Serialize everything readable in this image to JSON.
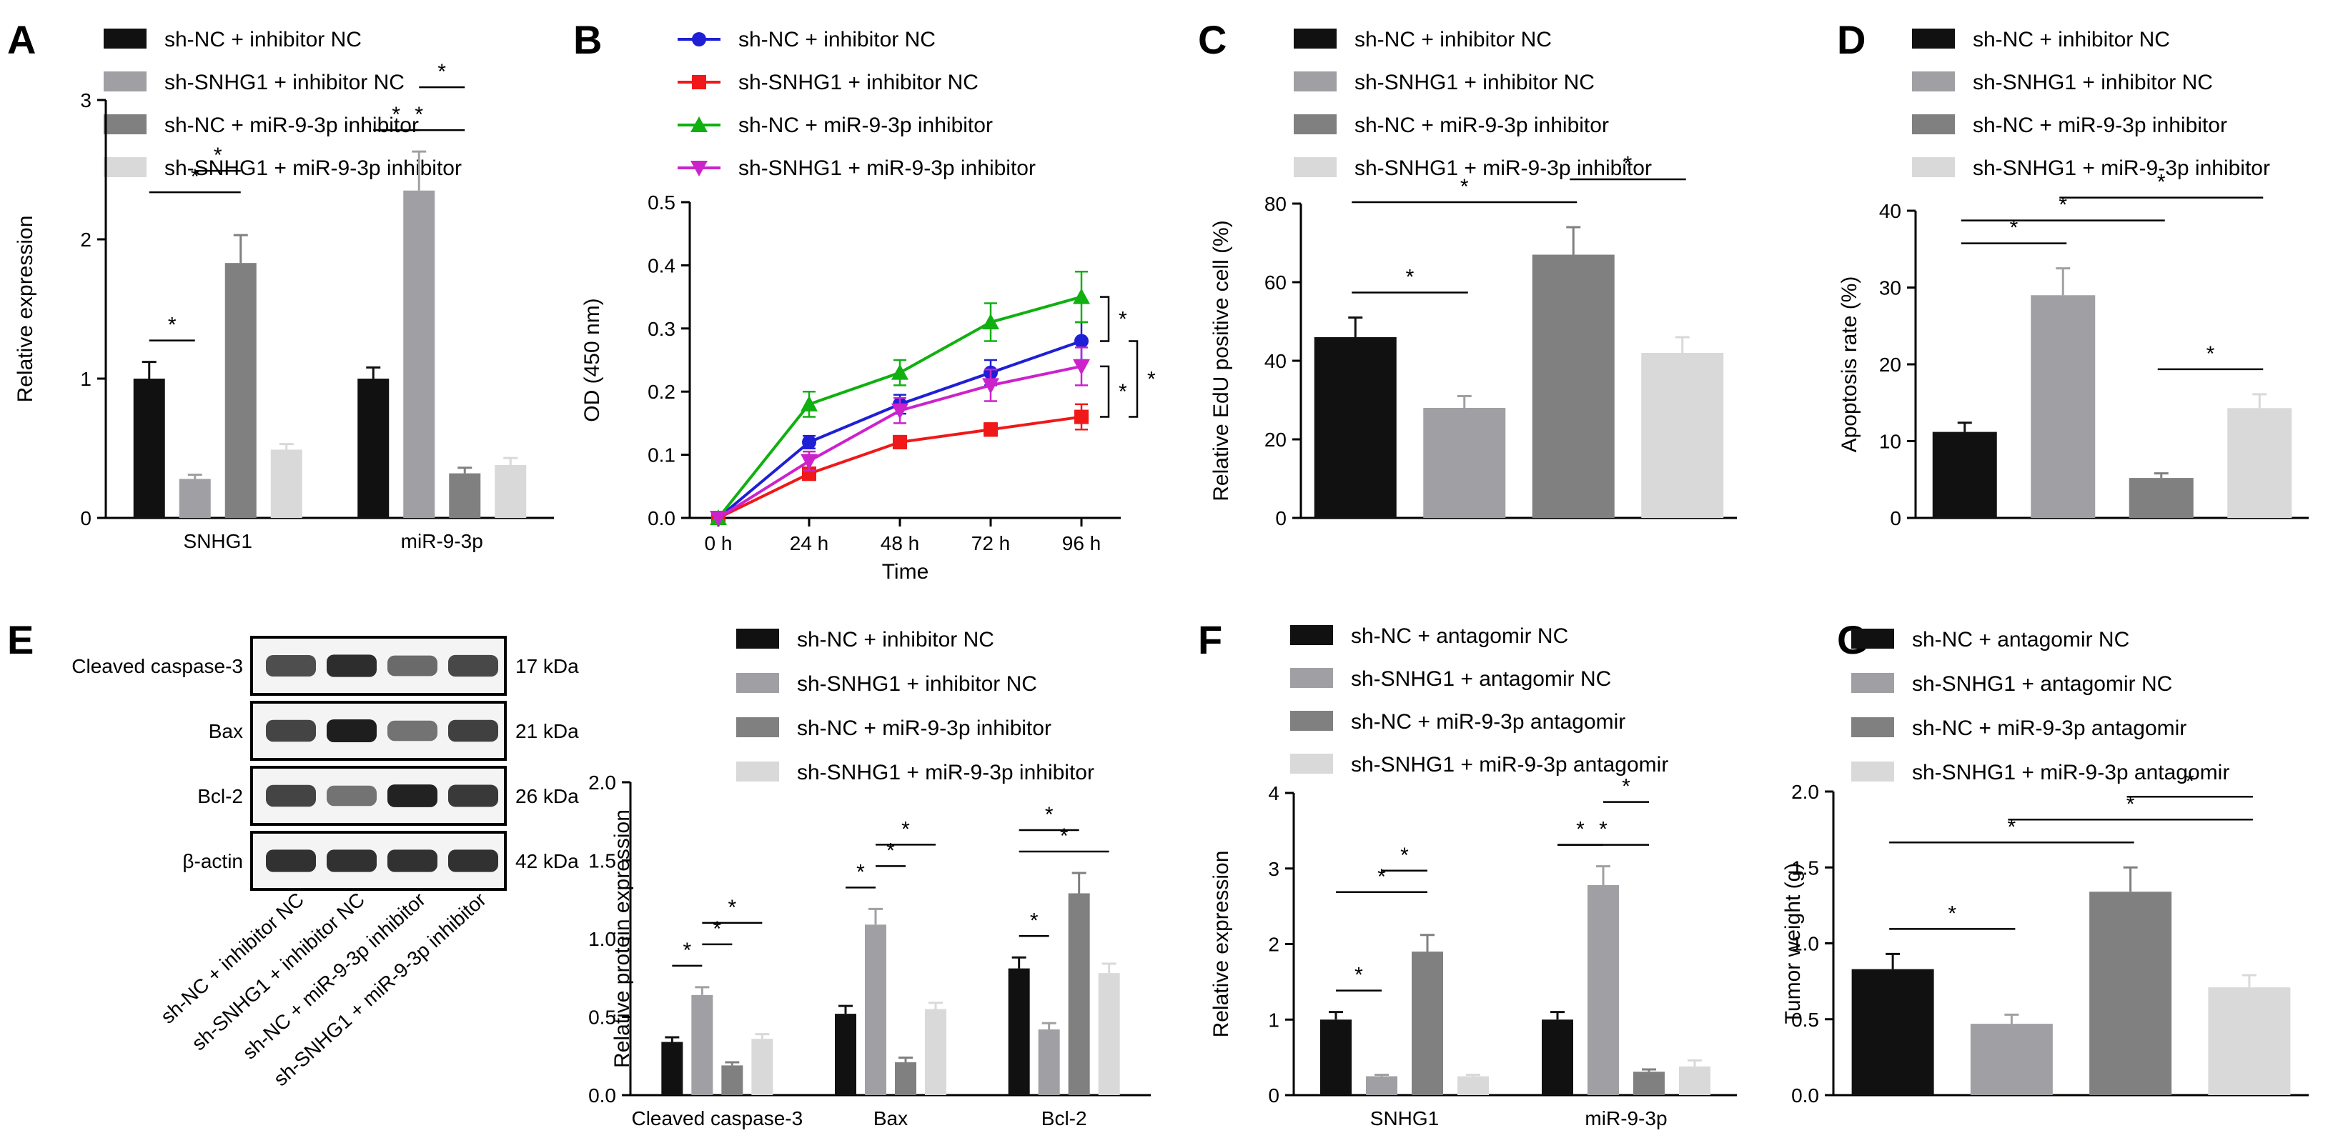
{
  "colors": {
    "g1": "#111111",
    "g2": "#a0a0a4",
    "g3": "#808080",
    "g4": "#d9d9d9",
    "line_g1": "#1f1fd6",
    "line_g2": "#f01818",
    "line_g3": "#10b010",
    "line_g4": "#cc22cc"
  },
  "groups_inhibitor": [
    "sh-NC + inhibitor NC",
    "sh-SNHG1 + inhibitor NC",
    "sh-NC + miR-9-3p inhibitor",
    "sh-SNHG1 + miR-9-3p inhibitor"
  ],
  "groups_antagomir": [
    "sh-NC + antagomir NC",
    "sh-SNHG1 + antagomir NC",
    "sh-NC + miR-9-3p antagomir",
    "sh-SNHG1 + miR-9-3p antagomir"
  ],
  "star": "*",
  "western": {
    "label": "E",
    "bands": [
      {
        "protein": "Cleaved caspase-3",
        "size": "17 kDa",
        "intensity": [
          0.75,
          0.92,
          0.6,
          0.78
        ]
      },
      {
        "protein": "Bax",
        "size": "21 kDa",
        "intensity": [
          0.8,
          1.0,
          0.55,
          0.82
        ]
      },
      {
        "protein": "Bcl-2",
        "size": "26 kDa",
        "intensity": [
          0.8,
          0.55,
          0.98,
          0.86
        ]
      },
      {
        "protein": "β-actin",
        "size": "42 kDa",
        "intensity": [
          0.9,
          0.9,
          0.9,
          0.9
        ]
      }
    ],
    "lane_labels": [
      "sh-NC + inhibitor NC",
      "sh-SNHG1 + inhibitor NC",
      "sh-NC + miR-9-3p inhibitor",
      "sh-SNHG1 + miR-9-3p inhibitor"
    ]
  },
  "chart_data": [
    {
      "id": "A",
      "type": "bar",
      "panel_label": "A",
      "categories": [
        "SNHG1",
        "miR-9-3p"
      ],
      "series": [
        {
          "name": "sh-NC + inhibitor NC",
          "values": [
            1.0,
            1.0
          ],
          "errors": [
            0.12,
            0.08
          ]
        },
        {
          "name": "sh-SNHG1 + inhibitor NC",
          "values": [
            0.28,
            2.35
          ],
          "errors": [
            0.03,
            0.28
          ]
        },
        {
          "name": "sh-NC + miR-9-3p inhibitor",
          "values": [
            1.83,
            0.32
          ],
          "errors": [
            0.2,
            0.04
          ]
        },
        {
          "name": "sh-SNHG1 + miR-9-3p inhibitor",
          "values": [
            0.49,
            0.38
          ],
          "errors": [
            0.04,
            0.05
          ]
        }
      ],
      "xlabel": "",
      "ylabel": "Relative expression",
      "ylim": [
        0,
        3
      ],
      "yticks": [
        "0",
        "1",
        "2",
        "3"
      ],
      "ytick_values": [
        0,
        1,
        2,
        3
      ],
      "significance": [
        [
          0,
          0,
          1
        ],
        [
          0,
          0,
          2
        ],
        [
          0,
          1,
          2
        ],
        [
          1,
          0,
          1
        ],
        [
          1,
          0,
          2
        ],
        [
          1,
          1,
          2
        ]
      ]
    },
    {
      "id": "B",
      "type": "line",
      "panel_label": "B",
      "x": [
        "0 h",
        "24 h",
        "48 h",
        "72 h",
        "96 h"
      ],
      "series": [
        {
          "name": "sh-NC + inhibitor NC",
          "marker": "circle",
          "values": [
            0.0,
            0.12,
            0.18,
            0.23,
            0.28
          ],
          "errors": [
            0,
            0.01,
            0.015,
            0.02,
            0.03
          ]
        },
        {
          "name": "sh-SNHG1 + inhibitor NC",
          "marker": "square",
          "values": [
            0.0,
            0.07,
            0.12,
            0.14,
            0.16
          ],
          "errors": [
            0,
            0.01,
            0.01,
            0.01,
            0.02
          ]
        },
        {
          "name": "sh-NC + miR-9-3p inhibitor",
          "marker": "triangle",
          "values": [
            0.0,
            0.18,
            0.23,
            0.31,
            0.35
          ],
          "errors": [
            0,
            0.02,
            0.02,
            0.03,
            0.04
          ]
        },
        {
          "name": "sh-SNHG1 + miR-9-3p inhibitor",
          "marker": "triangle-down",
          "values": [
            0.0,
            0.09,
            0.17,
            0.21,
            0.24
          ],
          "errors": [
            0,
            0.015,
            0.02,
            0.025,
            0.03
          ]
        }
      ],
      "xlabel": "Time",
      "ylabel": "OD (450 nm)",
      "ylim": [
        0,
        0.5
      ],
      "yticks": [
        "0.0",
        "0.1",
        "0.2",
        "0.3",
        "0.4",
        "0.5"
      ],
      "ytick_values": [
        0,
        0.1,
        0.2,
        0.3,
        0.4,
        0.5
      ]
    },
    {
      "id": "C",
      "type": "bar",
      "panel_label": "C",
      "categories": [
        "sh-NC + inhibitor NC",
        "sh-SNHG1 + inhibitor NC",
        "sh-NC + miR-9-3p inhibitor",
        "sh-SNHG1 + miR-9-3p inhibitor"
      ],
      "values": [
        46,
        28,
        67,
        42
      ],
      "errors": [
        5,
        3,
        7,
        4
      ],
      "xlabel": "",
      "ylabel": "Relative EdU positive cell (%)",
      "ylim": [
        0,
        80
      ],
      "yticks": [
        "0",
        "20",
        "40",
        "60",
        "80"
      ],
      "ytick_values": [
        0,
        20,
        40,
        60,
        80
      ],
      "significance": [
        [
          0,
          1
        ],
        [
          0,
          2
        ],
        [
          2,
          3
        ]
      ]
    },
    {
      "id": "D",
      "type": "bar",
      "panel_label": "D",
      "categories": [
        "sh-NC + inhibitor NC",
        "sh-SNHG1 + inhibitor NC",
        "sh-NC + miR-9-3p inhibitor",
        "sh-SNHG1 + miR-9-3p inhibitor"
      ],
      "values": [
        11.2,
        29,
        5.2,
        14.3
      ],
      "errors": [
        1.2,
        3.5,
        0.6,
        1.8
      ],
      "xlabel": "",
      "ylabel": "Apoptosis rate (%)",
      "ylim": [
        0,
        40
      ],
      "yticks": [
        "0",
        "10",
        "20",
        "30",
        "40"
      ],
      "ytick_values": [
        0,
        10,
        20,
        30,
        40
      ],
      "significance": [
        [
          0,
          1
        ],
        [
          0,
          2
        ],
        [
          1,
          3
        ],
        [
          2,
          3
        ]
      ]
    },
    {
      "id": "E",
      "type": "bar",
      "panel_label": "",
      "categories": [
        "Cleaved caspase-3",
        "Bax",
        "Bcl-2"
      ],
      "series": [
        {
          "name": "sh-NC + inhibitor NC",
          "values": [
            0.34,
            0.52,
            0.81
          ],
          "errors": [
            0.03,
            0.05,
            0.07
          ]
        },
        {
          "name": "sh-SNHG1 + inhibitor NC",
          "values": [
            0.64,
            1.09,
            0.42
          ],
          "errors": [
            0.05,
            0.1,
            0.04
          ]
        },
        {
          "name": "sh-NC + miR-9-3p inhibitor",
          "values": [
            0.19,
            0.21,
            1.29
          ],
          "errors": [
            0.02,
            0.03,
            0.13
          ]
        },
        {
          "name": "sh-SNHG1 + miR-9-3p inhibitor",
          "values": [
            0.36,
            0.55,
            0.78
          ],
          "errors": [
            0.03,
            0.04,
            0.06
          ]
        }
      ],
      "xlabel": "",
      "ylabel": "Relative protein expression",
      "ylim": [
        0,
        2.0
      ],
      "yticks": [
        "0.0",
        "0.5",
        "1.0",
        "1.5",
        "2.0"
      ],
      "ytick_values": [
        0,
        0.5,
        1.0,
        1.5,
        2.0
      ],
      "significance": [
        [
          0,
          0,
          1
        ],
        [
          0,
          1,
          2
        ],
        [
          0,
          1,
          3
        ],
        [
          1,
          0,
          1
        ],
        [
          1,
          1,
          2
        ],
        [
          1,
          1,
          3
        ],
        [
          2,
          0,
          1
        ],
        [
          2,
          0,
          2
        ],
        [
          2,
          0,
          3
        ]
      ]
    },
    {
      "id": "F",
      "type": "bar",
      "panel_label": "F",
      "categories": [
        "SNHG1",
        "miR-9-3p"
      ],
      "series": [
        {
          "name": "sh-NC + antagomir NC",
          "values": [
            1.0,
            1.0
          ],
          "errors": [
            0.1,
            0.1
          ]
        },
        {
          "name": "sh-SNHG1 + antagomir NC",
          "values": [
            0.25,
            2.78
          ],
          "errors": [
            0.02,
            0.25
          ]
        },
        {
          "name": "sh-NC + miR-9-3p antagomir",
          "values": [
            1.9,
            0.31
          ],
          "errors": [
            0.22,
            0.03
          ]
        },
        {
          "name": "sh-SNHG1 + miR-9-3p antagomir",
          "values": [
            0.25,
            0.38
          ],
          "errors": [
            0.02,
            0.08
          ]
        }
      ],
      "xlabel": "",
      "ylabel": "Relative expression",
      "ylim": [
        0,
        4
      ],
      "yticks": [
        "0",
        "1",
        "2",
        "3",
        "4"
      ],
      "ytick_values": [
        0,
        1,
        2,
        3,
        4
      ],
      "significance": [
        [
          0,
          0,
          1
        ],
        [
          0,
          0,
          2
        ],
        [
          0,
          1,
          2
        ],
        [
          1,
          0,
          1
        ],
        [
          1,
          0,
          2
        ],
        [
          1,
          1,
          2
        ]
      ]
    },
    {
      "id": "G",
      "type": "bar",
      "panel_label": "G",
      "categories": [
        "sh-NC + antagomir NC",
        "sh-SNHG1 + antagomir NC",
        "sh-NC + miR-9-3p antagomir",
        "sh-SNHG1 + miR-9-3p antagomir"
      ],
      "values": [
        0.83,
        0.47,
        1.34,
        0.71
      ],
      "errors": [
        0.1,
        0.06,
        0.16,
        0.08
      ],
      "xlabel": "",
      "ylabel": "Tumor weight (g)",
      "ylim": [
        0,
        2.0
      ],
      "yticks": [
        "0.0",
        "0.5",
        "1.0",
        "1.5",
        "2.0"
      ],
      "ytick_values": [
        0,
        0.5,
        1.0,
        1.5,
        2.0
      ],
      "significance": [
        [
          0,
          1
        ],
        [
          0,
          2
        ],
        [
          1,
          3
        ],
        [
          2,
          3
        ]
      ]
    }
  ]
}
